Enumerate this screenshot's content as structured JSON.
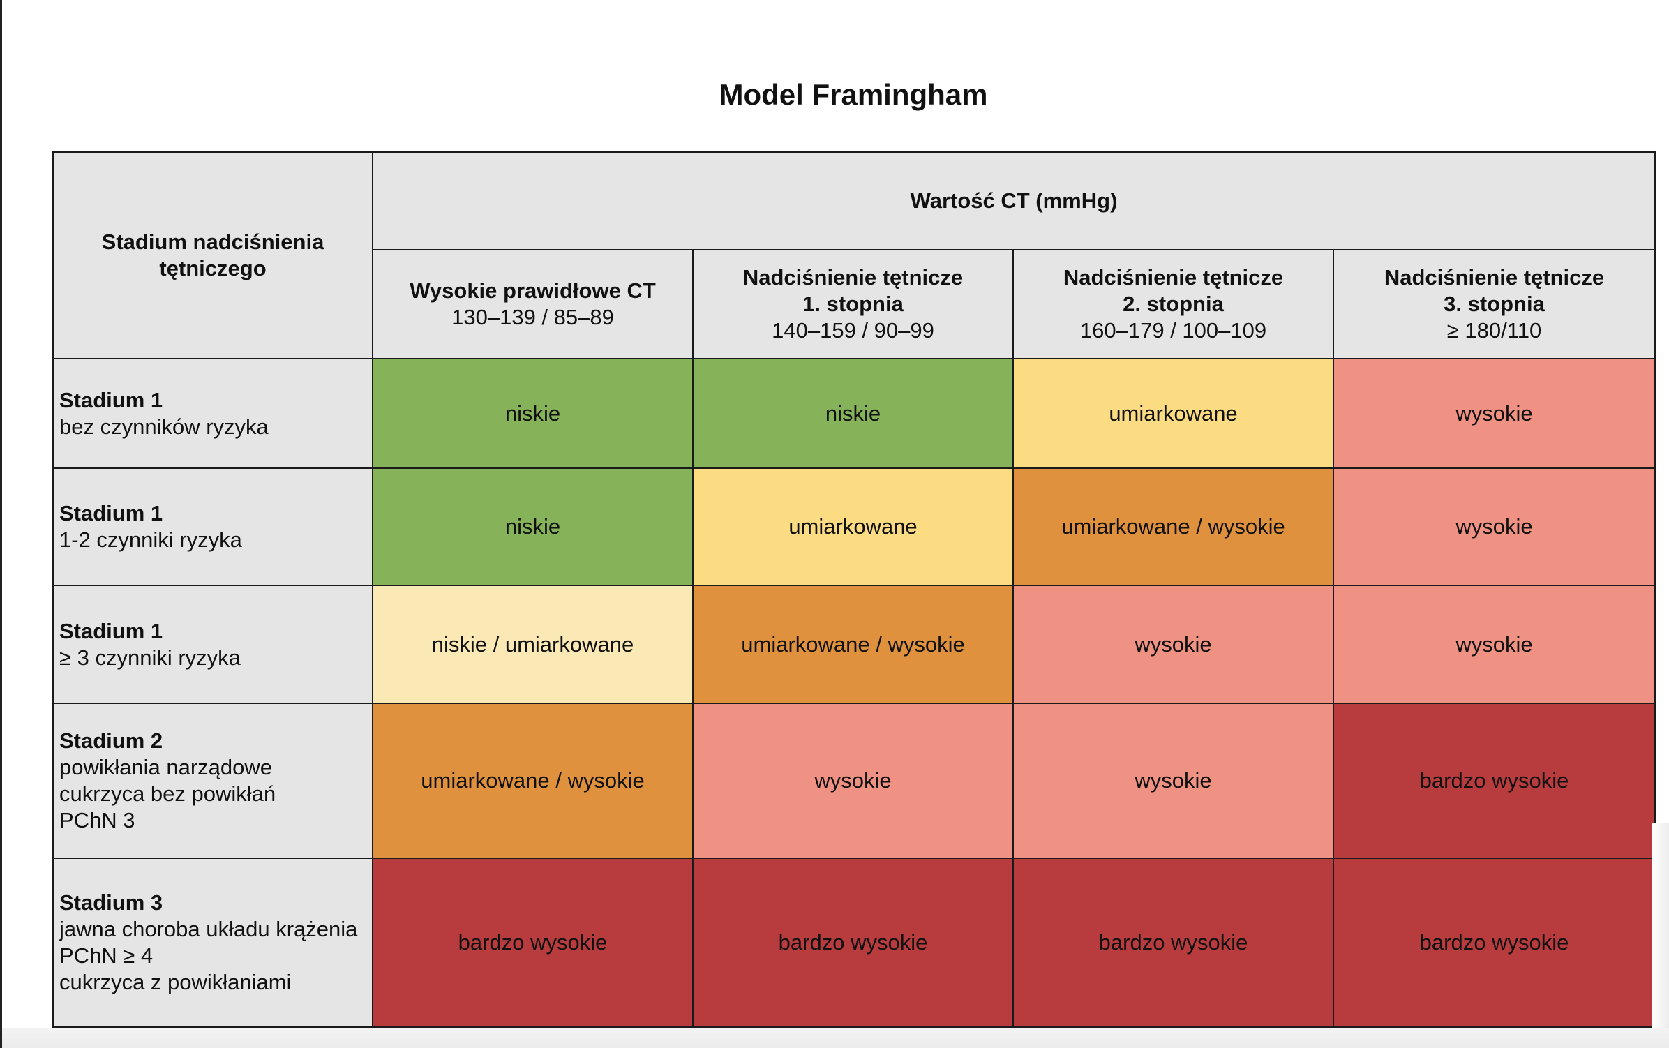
{
  "title": "Model Framingham",
  "header": {
    "stage_label": [
      "Stadium nadciśnienia",
      "tętniczego"
    ],
    "value_label": "Wartość CT (mmHg)",
    "columns": [
      {
        "name_lines": [
          "Wysokie prawidłowe CT"
        ],
        "range": "130–139 / 85–89"
      },
      {
        "name_lines": [
          "Nadciśnienie tętnicze",
          "1. stopnia"
        ],
        "range": "140–159 / 90–99"
      },
      {
        "name_lines": [
          "Nadciśnienie tętnicze",
          "2. stopnia"
        ],
        "range": "160–179 / 100–109"
      },
      {
        "name_lines": [
          "Nadciśnienie tętnicze",
          "3. stopnia"
        ],
        "range": "≥ 180/110"
      }
    ]
  },
  "colors": {
    "niskie": "#86b25a",
    "umiarkowane": "#fcdc82",
    "niskie / umiarkowane": "#fbe9b5",
    "umiarkowane / wysokie": "#e0913e",
    "wysokie": "#ef9284",
    "bardzo wysokie": "#b83b3e",
    "header_bg": "#e5e5e5"
  },
  "rows": [
    {
      "stage": "Stadium 1",
      "details": [
        "bez czynników ryzyka"
      ],
      "cells": [
        "niskie",
        "niskie",
        "umiarkowane",
        "wysokie"
      ]
    },
    {
      "stage": "Stadium 1",
      "details": [
        "1-2 czynniki ryzyka"
      ],
      "cells": [
        "niskie",
        "umiarkowane",
        "umiarkowane / wysokie",
        "wysokie"
      ]
    },
    {
      "stage": "Stadium 1",
      "details": [
        "≥ 3 czynniki ryzyka"
      ],
      "cells": [
        "niskie / umiarkowane",
        "umiarkowane / wysokie",
        "wysokie",
        "wysokie"
      ]
    },
    {
      "stage": "Stadium 2",
      "details": [
        "powikłania narządowe",
        "cukrzyca bez powikłań",
        "PChN 3"
      ],
      "cells": [
        "umiarkowane / wysokie",
        "wysokie",
        "wysokie",
        "bardzo wysokie"
      ]
    },
    {
      "stage": "Stadium 3",
      "details": [
        "jawna choroba układu krążenia",
        "PChN ≥ 4",
        "cukrzyca z powikłaniami"
      ],
      "cells": [
        "bardzo wysokie",
        "bardzo wysokie",
        "bardzo wysokie",
        "bardzo wysokie"
      ]
    }
  ]
}
